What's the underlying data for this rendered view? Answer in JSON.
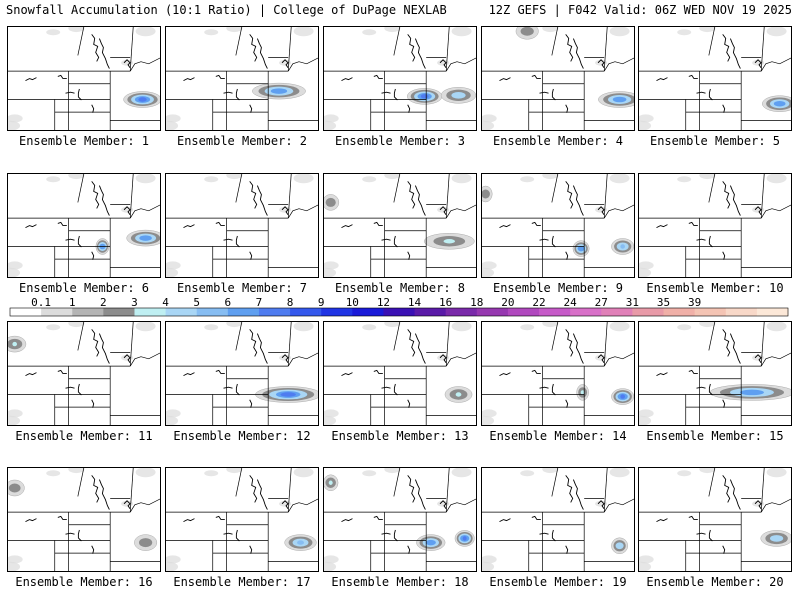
{
  "header": {
    "title_left": "Snowfall Accumulation (10:1 Ratio) | College of DuPage NEXLAB",
    "title_right": "12Z GEFS | F042 Valid: 06Z WED NOV 19 2025"
  },
  "member_prefix": "Ensemble Member: ",
  "members": [
    {
      "n": "1",
      "snow": [
        {
          "lon": 0.88,
          "lat": 0.7,
          "len": 0.22,
          "max": 7
        }
      ]
    },
    {
      "n": "2",
      "snow": [
        {
          "lon": 0.74,
          "lat": 0.62,
          "len": 0.32,
          "max": 6
        }
      ]
    },
    {
      "n": "3",
      "snow": [
        {
          "lon": 0.66,
          "lat": 0.67,
          "len": 0.2,
          "max": 7
        },
        {
          "lon": 0.88,
          "lat": 0.66,
          "len": 0.2,
          "max": 4
        }
      ]
    },
    {
      "n": "4",
      "snow": [
        {
          "lon": 0.9,
          "lat": 0.7,
          "len": 0.25,
          "max": 6
        },
        {
          "lon": 0.3,
          "lat": 0.05,
          "len": 0.12,
          "max": 2
        }
      ]
    },
    {
      "n": "5",
      "snow": [
        {
          "lon": 0.92,
          "lat": 0.74,
          "len": 0.2,
          "max": 6
        }
      ]
    },
    {
      "n": "6",
      "snow": [
        {
          "lon": 0.62,
          "lat": 0.7,
          "len": 0.06,
          "max": 6
        },
        {
          "lon": 0.9,
          "lat": 0.62,
          "len": 0.22,
          "max": 6
        }
      ]
    },
    {
      "n": "7",
      "snow": []
    },
    {
      "n": "8",
      "snow": [
        {
          "lon": 0.82,
          "lat": 0.65,
          "len": 0.3,
          "max": 3
        },
        {
          "lon": 0.05,
          "lat": 0.28,
          "len": 0.08,
          "max": 2
        }
      ]
    },
    {
      "n": "9",
      "snow": [
        {
          "lon": 0.65,
          "lat": 0.72,
          "len": 0.08,
          "max": 6
        },
        {
          "lon": 0.92,
          "lat": 0.7,
          "len": 0.12,
          "max": 5
        },
        {
          "lon": 0.03,
          "lat": 0.2,
          "len": 0.06,
          "max": 2
        }
      ]
    },
    {
      "n": "10",
      "snow": []
    },
    {
      "n": "11",
      "snow": [
        {
          "lon": 0.05,
          "lat": 0.22,
          "len": 0.12,
          "max": 3
        }
      ]
    },
    {
      "n": "12",
      "snow": [
        {
          "lon": 0.8,
          "lat": 0.7,
          "len": 0.4,
          "max": 7
        }
      ]
    },
    {
      "n": "13",
      "snow": [
        {
          "lon": 0.88,
          "lat": 0.7,
          "len": 0.15,
          "max": 3
        }
      ]
    },
    {
      "n": "14",
      "snow": [
        {
          "lon": 0.92,
          "lat": 0.72,
          "len": 0.12,
          "max": 7
        },
        {
          "lon": 0.66,
          "lat": 0.68,
          "len": 0.05,
          "max": 3
        }
      ]
    },
    {
      "n": "15",
      "snow": [
        {
          "lon": 0.74,
          "lat": 0.68,
          "len": 0.52,
          "max": 6
        }
      ]
    },
    {
      "n": "16",
      "snow": [
        {
          "lon": 0.05,
          "lat": 0.2,
          "len": 0.1,
          "max": 2
        },
        {
          "lon": 0.9,
          "lat": 0.72,
          "len": 0.12,
          "max": 2
        }
      ]
    },
    {
      "n": "17",
      "snow": [
        {
          "lon": 0.88,
          "lat": 0.72,
          "len": 0.18,
          "max": 5
        }
      ]
    },
    {
      "n": "18",
      "snow": [
        {
          "lon": 0.7,
          "lat": 0.72,
          "len": 0.16,
          "max": 6
        },
        {
          "lon": 0.92,
          "lat": 0.68,
          "len": 0.1,
          "max": 7
        },
        {
          "lon": 0.05,
          "lat": 0.15,
          "len": 0.07,
          "max": 3
        }
      ]
    },
    {
      "n": "19",
      "snow": [
        {
          "lon": 0.9,
          "lat": 0.75,
          "len": 0.08,
          "max": 4
        }
      ]
    },
    {
      "n": "20",
      "snow": [
        {
          "lon": 0.9,
          "lat": 0.68,
          "len": 0.18,
          "max": 4
        }
      ]
    }
  ],
  "legend": {
    "ticks": [
      "0.1",
      "1",
      "2",
      "3",
      "4",
      "5",
      "6",
      "7",
      "8",
      "9",
      "10",
      "12",
      "14",
      "16",
      "18",
      "20",
      "22",
      "24",
      "27",
      "31",
      "35",
      "39"
    ],
    "colors": [
      "#ffffff",
      "#dcdcdc",
      "#b4b4b4",
      "#8c8c8c",
      "#bfeff2",
      "#a9d6f5",
      "#87bdf2",
      "#5f9ff0",
      "#4f7cf0",
      "#3458ec",
      "#2034e4",
      "#1a1ad8",
      "#3a10b4",
      "#5a1aa8",
      "#7a2aaa",
      "#9638b0",
      "#b048be",
      "#c65ac8",
      "#d870c8",
      "#e080b8",
      "#e89aa8",
      "#f0b0a8",
      "#f4c4b4",
      "#f8d8c8",
      "#fce8d8"
    ]
  }
}
